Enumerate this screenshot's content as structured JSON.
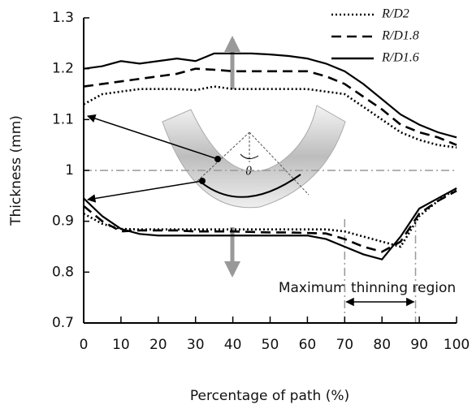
{
  "chart_data": {
    "type": "line",
    "xlabel": "Percentage of path (%)",
    "ylabel": "Thickness (mm)",
    "annotation": "Maximum thinning region",
    "angle_label": "θ",
    "x": [
      0,
      5,
      10,
      15,
      20,
      25,
      30,
      35,
      40,
      45,
      50,
      55,
      60,
      65,
      70,
      75,
      80,
      85,
      90,
      95,
      100
    ],
    "series": [
      {
        "name": "R/D2",
        "color": "#000000",
        "style": "dotted",
        "outer": [
          1.13,
          1.15,
          1.155,
          1.16,
          1.16,
          1.16,
          1.158,
          1.165,
          1.16,
          1.16,
          1.16,
          1.16,
          1.16,
          1.155,
          1.15,
          1.125,
          1.1,
          1.075,
          1.06,
          1.05,
          1.045
        ],
        "inner": [
          0.915,
          0.895,
          0.885,
          0.884,
          0.884,
          0.884,
          0.884,
          0.884,
          0.884,
          0.884,
          0.884,
          0.884,
          0.884,
          0.884,
          0.88,
          0.87,
          0.86,
          0.85,
          0.91,
          0.94,
          0.965
        ]
      },
      {
        "name": "R/D1.8",
        "color": "#000000",
        "style": "dashed",
        "outer": [
          1.165,
          1.17,
          1.175,
          1.18,
          1.185,
          1.19,
          1.2,
          1.198,
          1.195,
          1.195,
          1.195,
          1.195,
          1.195,
          1.185,
          1.17,
          1.145,
          1.12,
          1.09,
          1.075,
          1.065,
          1.05
        ],
        "inner": [
          0.93,
          0.9,
          0.88,
          0.882,
          0.882,
          0.882,
          0.88,
          0.88,
          0.88,
          0.879,
          0.878,
          0.878,
          0.877,
          0.876,
          0.865,
          0.85,
          0.84,
          0.86,
          0.915,
          0.94,
          0.96
        ]
      },
      {
        "name": "R/D1.6",
        "color": "#000000",
        "style": "solid",
        "outer": [
          1.2,
          1.205,
          1.215,
          1.21,
          1.215,
          1.22,
          1.215,
          1.23,
          1.23,
          1.23,
          1.228,
          1.225,
          1.22,
          1.21,
          1.195,
          1.17,
          1.14,
          1.11,
          1.09,
          1.075,
          1.065
        ],
        "inner": [
          0.945,
          0.91,
          0.885,
          0.875,
          0.872,
          0.872,
          0.872,
          0.872,
          0.872,
          0.872,
          0.872,
          0.872,
          0.872,
          0.865,
          0.85,
          0.835,
          0.825,
          0.87,
          0.925,
          0.945,
          0.965
        ]
      }
    ],
    "reference_y": 1,
    "thinning_region": [
      70,
      89
    ],
    "xlim": [
      0,
      100
    ],
    "xticks": [
      0,
      10,
      20,
      30,
      40,
      50,
      60,
      70,
      80,
      90,
      100
    ],
    "ylim": [
      0.7,
      1.3
    ],
    "yticks": [
      0.7,
      0.8,
      0.9,
      1,
      1.1,
      1.2,
      1.3
    ],
    "legend": "upper right"
  }
}
